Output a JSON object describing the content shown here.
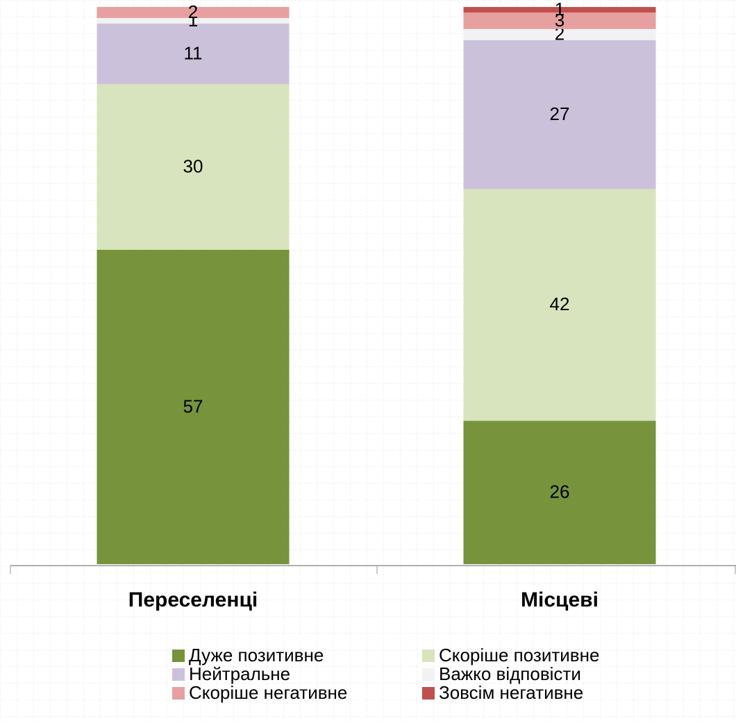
{
  "chart_data": {
    "type": "stacked_bar",
    "categories": [
      "Переселенці",
      "Місцеві"
    ],
    "series": [
      {
        "name": "Дуже позитивне",
        "color": "#77933c",
        "values": [
          57,
          26
        ]
      },
      {
        "name": "Скоріше позитивне",
        "color": "#d7e4bd",
        "values": [
          30,
          42
        ]
      },
      {
        "name": "Нейтральне",
        "color": "#ccc1da",
        "values": [
          11,
          27
        ]
      },
      {
        "name": "Важко відповісти",
        "color": "#f2f2f2",
        "values": [
          1,
          2
        ]
      },
      {
        "name": "Скоріше негативне",
        "color": "#e6a0a0",
        "values": [
          2,
          3
        ]
      },
      {
        "name": "Зовсім негативне",
        "color": "#c0504d",
        "values": [
          null,
          1
        ]
      }
    ]
  }
}
